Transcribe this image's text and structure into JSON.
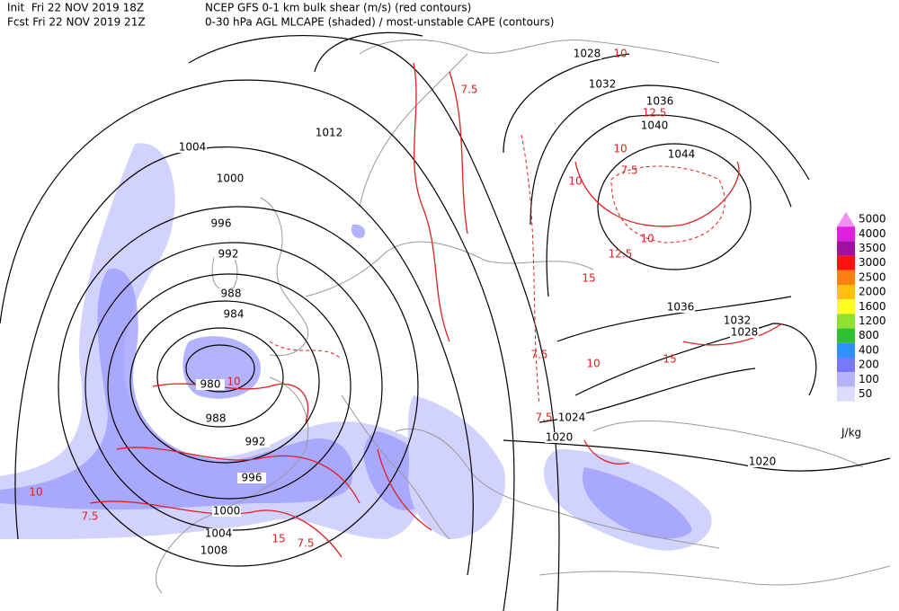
{
  "header": {
    "init": "Init  Fri 22 NOV 2019 18Z",
    "fcst": "Fcst Fri 22 NOV 2019 21Z",
    "title": "NCEP GFS 0-1 km bulk shear (m/s) (red contours)",
    "subtitle": "0-30 hPa AGL MLCAPE (shaded) / most-unstable CAPE (contours)"
  },
  "isobar_labels": [
    "1028",
    "1032",
    "1036",
    "1040",
    "1044",
    "1012",
    "1004",
    "1000",
    "996",
    "992",
    "988",
    "984",
    "980",
    "988",
    "992",
    "996",
    "1000",
    "1004",
    "1008",
    "1036",
    "1032",
    "1028",
    "1024",
    "1020",
    "1020"
  ],
  "shear_labels": [
    "10",
    "7.5",
    "12.5",
    "10",
    "10",
    "7.5",
    "10",
    "12.5",
    "15",
    "7.5",
    "10",
    "15",
    "7.5",
    "10",
    "7.5",
    "15",
    "7.5",
    "10"
  ],
  "legend": {
    "unit": "J/kg",
    "levels": [
      {
        "label": "5000",
        "color": "#f090f0"
      },
      {
        "label": "4000",
        "color": "#e020e0"
      },
      {
        "label": "3500",
        "color": "#a010a0"
      },
      {
        "label": "3000",
        "color": "#ff1010"
      },
      {
        "label": "2500",
        "color": "#ff8010"
      },
      {
        "label": "2000",
        "color": "#ffc010"
      },
      {
        "label": "1600",
        "color": "#ffff20"
      },
      {
        "label": "1200",
        "color": "#90e030"
      },
      {
        "label": "800",
        "color": "#30c030"
      },
      {
        "label": "400",
        "color": "#3090ff"
      },
      {
        "label": "200",
        "color": "#7878ff"
      },
      {
        "label": "100",
        "color": "#b4b4ff"
      },
      {
        "label": "50",
        "color": "#dcdcff"
      }
    ]
  }
}
